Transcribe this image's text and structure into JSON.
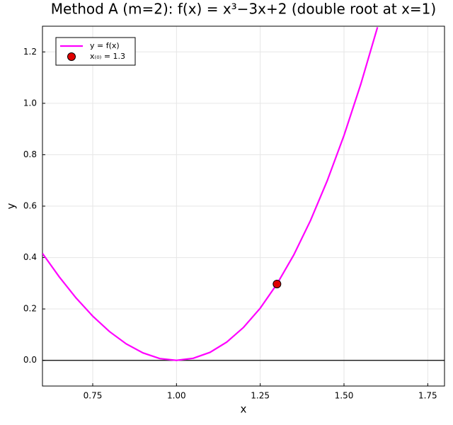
{
  "chart_data": {
    "type": "line",
    "title": "Method A (m=2): f(x) = x³−3x+2 (double root at x=1)",
    "x_label": "x",
    "y_label": "y",
    "xlim": [
      0.6,
      1.8
    ],
    "ylim": [
      -0.1,
      1.3
    ],
    "xticks": [
      {
        "value": 0.75,
        "label": "0.75"
      },
      {
        "value": 1,
        "label": "1.00"
      },
      {
        "value": 1.25,
        "label": "1.25"
      },
      {
        "value": 1.5,
        "label": "1.50"
      },
      {
        "value": 1.75,
        "label": "1.75"
      }
    ],
    "yticks": [
      {
        "value": 0,
        "label": "0.0"
      },
      0.2,
      0.4,
      0.6,
      0.8,
      {
        "value": 1,
        "label": "1.0"
      },
      1.2
    ],
    "grid": true,
    "legend": "top-left",
    "hline": 0,
    "series": [
      {
        "name": "y = f(x)",
        "color": "#ff00ff",
        "mode": "line",
        "x": [
          0.6,
          0.65,
          0.7,
          0.75,
          0.8,
          0.85,
          0.9,
          0.95,
          1.0,
          1.05,
          1.1,
          1.15,
          1.2,
          1.25,
          1.3,
          1.35,
          1.4,
          1.45,
          1.5,
          1.55,
          1.6
        ],
        "values": [
          0.416,
          0.325,
          0.243,
          0.172,
          0.112,
          0.064,
          0.029,
          0.007,
          0,
          0.008,
          0.031,
          0.071,
          0.128,
          0.203,
          0.297,
          0.41,
          0.544,
          0.699,
          0.875,
          1.074,
          1.296
        ]
      },
      {
        "name": "x₍₀₎ = 1.3",
        "color": "#e00000",
        "mode": "marker",
        "x": [
          1.3
        ],
        "values": [
          0.297
        ]
      }
    ]
  }
}
